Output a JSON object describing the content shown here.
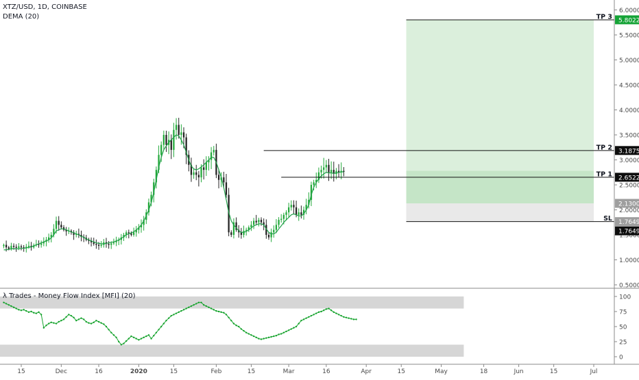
{
  "legend": {
    "symbol": "XTZ/USD, 1D, COINBASE",
    "indicator": "DEMA (20)",
    "mfi": "λ Trades - Money Flow Index [MFI] (20)"
  },
  "colors": {
    "up": "#26a69a",
    "green_candle": "#22a83a",
    "down": "#222222",
    "dema": "#21a04a",
    "mfi_line": "#16a32d",
    "profit_zone": "rgba(76,175,80,0.2)",
    "loss_zone": "#e9e9e9",
    "axis_text": "#4a4a4a",
    "tag_green": "#15a336",
    "tag_dark": "#0d0d0d",
    "tag_grey": "#9e9e9e"
  },
  "chart_data": [
    {
      "type": "candlestick",
      "title": "XTZ/USD, 1D, COINBASE",
      "ylim": [
        0.5,
        6.1
      ],
      "y_ticks": [
        "0.5000",
        "1.0000",
        "1.5000",
        "2.0000",
        "2.5000",
        "3.0000",
        "3.5000",
        "4.0000",
        "4.5000",
        "5.0000",
        "5.5000",
        "6.0000"
      ],
      "x_ticks": [
        "15",
        "Dec",
        "16",
        "2020",
        "15",
        "Feb",
        "15",
        "Mar",
        "16",
        "Apr",
        "15",
        "May",
        "18",
        "Jun",
        "15",
        "Jul"
      ],
      "x_tick_dates": [
        "2019-11-15",
        "2019-12-01",
        "2019-12-16",
        "2020-01-01",
        "2020-01-15",
        "2020-02-01",
        "2020-02-15",
        "2020-03-01",
        "2020-03-16",
        "2020-04-01",
        "2020-04-15",
        "2020-05-01",
        "2020-05-18",
        "2020-06-01",
        "2020-06-15",
        "2020-07-01"
      ],
      "first_date": "2019-11-08",
      "last_date": "2020-05-05",
      "close_series": [
        1.3,
        1.25,
        1.22,
        1.28,
        1.26,
        1.24,
        1.27,
        1.25,
        1.23,
        1.26,
        1.28,
        1.25,
        1.29,
        1.31,
        1.3,
        1.33,
        1.36,
        1.4,
        1.45,
        1.5,
        1.62,
        1.78,
        1.7,
        1.65,
        1.6,
        1.57,
        1.58,
        1.55,
        1.5,
        1.52,
        1.5,
        1.46,
        1.44,
        1.4,
        1.38,
        1.35,
        1.32,
        1.3,
        1.28,
        1.3,
        1.35,
        1.32,
        1.3,
        1.33,
        1.35,
        1.38,
        1.4,
        1.45,
        1.5,
        1.55,
        1.53,
        1.5,
        1.55,
        1.6,
        1.65,
        1.7,
        1.8,
        1.95,
        2.15,
        2.3,
        2.55,
        2.8,
        3.1,
        3.3,
        3.5,
        3.3,
        3.4,
        3.2,
        3.6,
        3.7,
        3.5,
        3.55,
        3.45,
        3.1,
        2.9,
        2.7,
        2.75,
        2.7,
        2.65,
        2.85,
        2.8,
        2.95,
        3.0,
        3.15,
        3.2,
        2.7,
        2.6,
        2.65,
        2.55,
        2.3,
        1.55,
        1.5,
        1.75,
        1.6,
        1.55,
        1.5,
        1.58,
        1.6,
        1.65,
        1.7,
        1.78,
        1.75,
        1.8,
        1.75,
        1.7,
        1.5,
        1.45,
        1.55,
        1.6,
        1.7,
        1.8,
        1.82,
        1.9,
        1.95,
        2.05,
        2.1,
        2.05,
        1.9,
        1.95,
        1.9,
        2.0,
        2.1,
        2.2,
        2.5,
        2.55,
        2.6,
        2.75,
        2.8,
        2.85,
        2.9,
        2.75,
        2.8,
        2.72,
        2.78,
        2.75,
        2.78,
        2.76
      ],
      "dema_series": [
        1.2,
        1.2,
        1.21,
        1.22,
        1.22,
        1.22,
        1.22,
        1.23,
        1.23,
        1.24,
        1.25,
        1.26,
        1.28,
        1.3,
        1.32,
        1.34,
        1.36,
        1.38,
        1.4,
        1.44,
        1.5,
        1.58,
        1.6,
        1.62,
        1.62,
        1.6,
        1.58,
        1.56,
        1.54,
        1.52,
        1.5,
        1.47,
        1.45,
        1.42,
        1.4,
        1.38,
        1.36,
        1.34,
        1.33,
        1.32,
        1.32,
        1.33,
        1.34,
        1.35,
        1.36,
        1.38,
        1.4,
        1.43,
        1.46,
        1.5,
        1.52,
        1.54,
        1.56,
        1.6,
        1.64,
        1.7,
        1.78,
        1.88,
        2.0,
        2.15,
        2.35,
        2.6,
        2.85,
        3.05,
        3.2,
        3.28,
        3.35,
        3.4,
        3.45,
        3.5,
        3.48,
        3.4,
        3.3,
        3.15,
        3.0,
        2.88,
        2.82,
        2.8,
        2.82,
        2.86,
        2.9,
        2.95,
        3.0,
        3.05,
        3.05,
        2.95,
        2.8,
        2.65,
        2.45,
        2.2,
        1.95,
        1.78,
        1.7,
        1.64,
        1.58,
        1.55,
        1.55,
        1.57,
        1.6,
        1.64,
        1.68,
        1.7,
        1.72,
        1.72,
        1.7,
        1.62,
        1.55,
        1.52,
        1.52,
        1.55,
        1.62,
        1.68,
        1.75,
        1.8,
        1.85,
        1.9,
        1.92,
        1.9,
        1.88,
        1.88,
        1.92,
        2.0,
        2.1,
        2.3,
        2.45,
        2.55,
        2.62,
        2.68,
        2.72,
        2.75,
        2.74,
        2.74,
        2.73,
        2.74,
        2.75,
        2.76,
        2.76
      ],
      "levels": {
        "tp3": {
          "label": "TP 3",
          "value": 5.8022,
          "tag": "5.8022"
        },
        "tp2": {
          "label": "TP 2",
          "value": 3.1875,
          "tag": "3.1875"
        },
        "tp1": {
          "label": "TP 1",
          "value": 2.6522,
          "tag": "2.6522"
        },
        "entry": {
          "value": 2.13,
          "tag": "2.1300"
        },
        "sl": {
          "label": "SL",
          "value": 1.7649,
          "tag": "1.7649",
          "tag2": "1.7649"
        }
      }
    },
    {
      "type": "line",
      "title": "λ Trades - Money Flow Index [MFI] (20)",
      "ylim": [
        -12,
        112
      ],
      "y_ticks": [
        "0",
        "25",
        "50",
        "75",
        "100"
      ],
      "bands": [
        [
          80,
          100
        ],
        [
          0,
          20
        ]
      ],
      "values": [
        90,
        88,
        86,
        84,
        82,
        80,
        78,
        77,
        78,
        76,
        74,
        75,
        73,
        72,
        74,
        70,
        48,
        52,
        55,
        57,
        56,
        55,
        58,
        60,
        62,
        66,
        70,
        68,
        65,
        60,
        62,
        64,
        62,
        58,
        56,
        55,
        57,
        60,
        58,
        56,
        54,
        50,
        45,
        40,
        36,
        32,
        25,
        20,
        22,
        26,
        30,
        34,
        32,
        30,
        28,
        30,
        32,
        34,
        36,
        30,
        35,
        40,
        45,
        50,
        55,
        60,
        64,
        68,
        70,
        72,
        74,
        76,
        78,
        80,
        82,
        84,
        86,
        88,
        90,
        90,
        86,
        84,
        82,
        80,
        78,
        76,
        75,
        74,
        73,
        70,
        65,
        60,
        55,
        52,
        50,
        46,
        43,
        40,
        38,
        36,
        34,
        32,
        30,
        29,
        30,
        31,
        32,
        33,
        34,
        35,
        37,
        38,
        40,
        42,
        44,
        46,
        48,
        50,
        55,
        60,
        62,
        64,
        66,
        68,
        70,
        72,
        74,
        75,
        77,
        79,
        80,
        77,
        74,
        72,
        70,
        68,
        66,
        65,
        64,
        63,
        62,
        62
      ]
    }
  ]
}
